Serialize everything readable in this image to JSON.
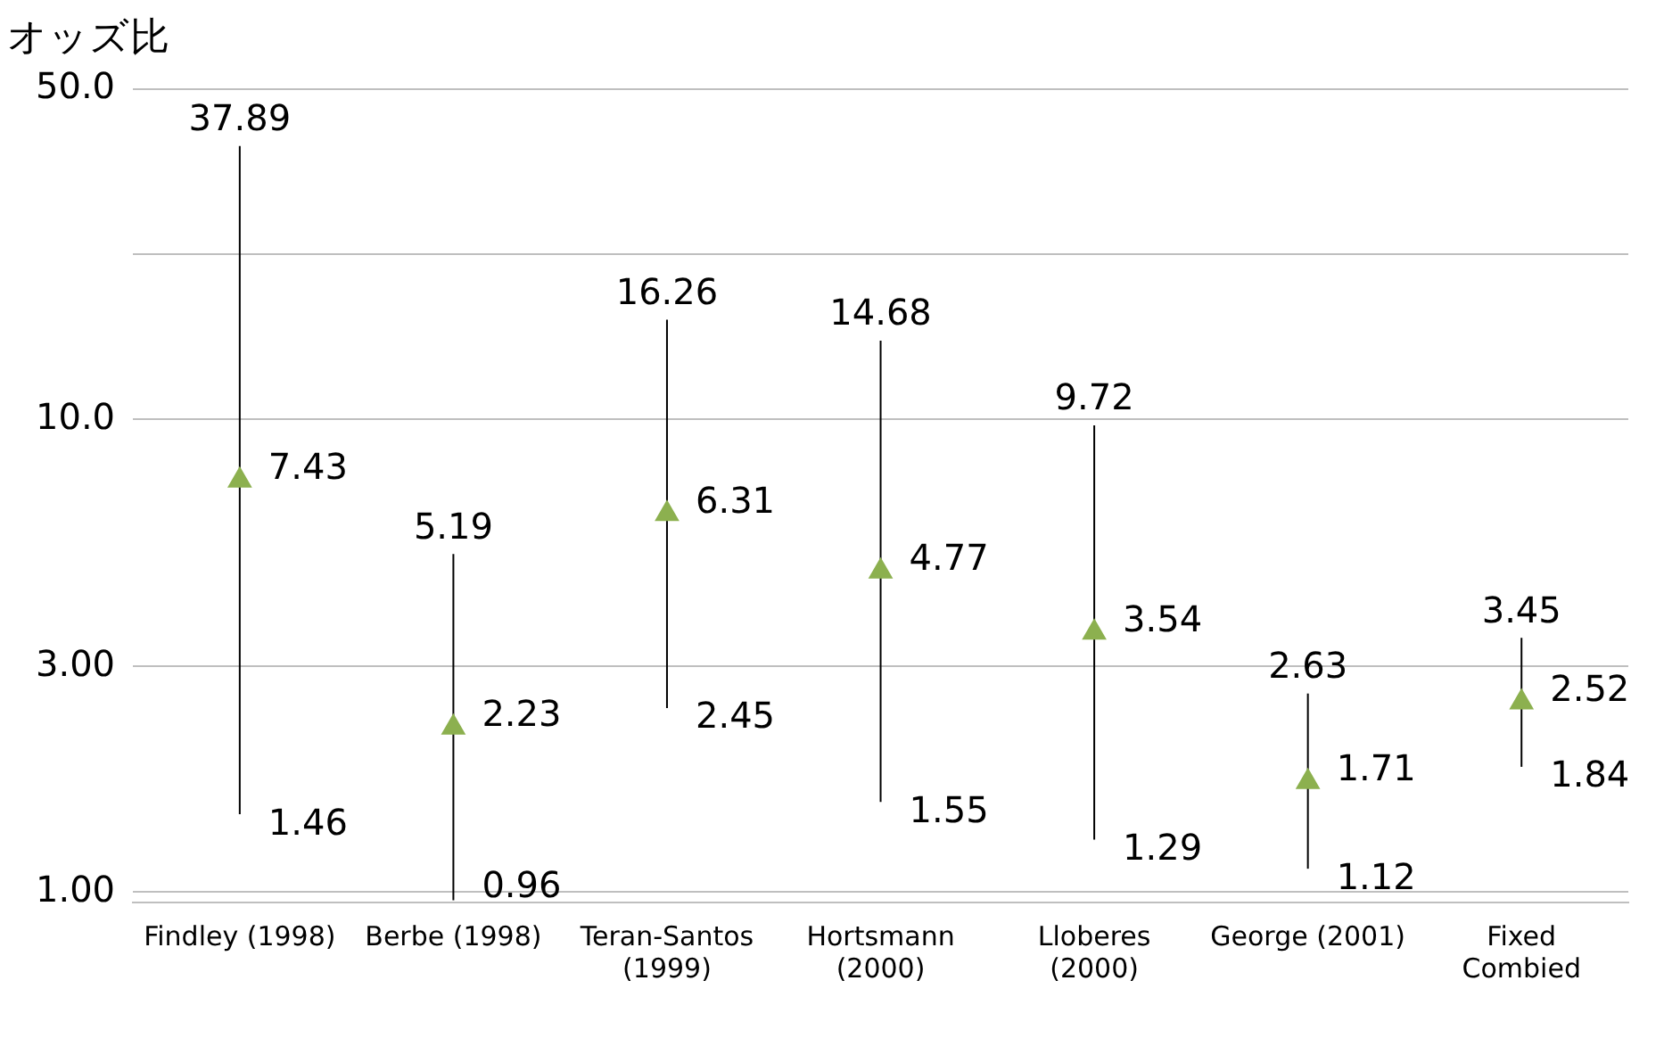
{
  "chart_data": {
    "type": "scatter",
    "ylabel": "オッズ比",
    "categories": [
      "Findley (1998)",
      "Berbe (1998)",
      "Teran-Santos\n(1999)",
      "Hortsmann\n(2000)",
      "Lloberes\n(2000)",
      "George (2001)",
      "Fixed\nCombied"
    ],
    "values": [
      7.43,
      2.23,
      6.31,
      4.77,
      3.54,
      1.71,
      2.52
    ],
    "errors": [
      [
        1.46,
        37.89
      ],
      [
        0.96,
        5.19
      ],
      [
        2.45,
        16.26
      ],
      [
        1.55,
        14.68
      ],
      [
        1.29,
        9.72
      ],
      [
        1.12,
        2.63
      ],
      [
        1.84,
        3.45
      ]
    ],
    "color": "#8cb04f",
    "marker": "triangle",
    "data_labels": true,
    "log": "y",
    "ylim": [
      0.95,
      50
    ],
    "yticks": [
      {
        "value": 1,
        "label": "1.00"
      },
      {
        "value": 3,
        "label": "3.00"
      },
      {
        "value": 10,
        "label": "10.0"
      },
      {
        "value": 22.4,
        "label": null
      },
      {
        "value": 50,
        "label": "50.0"
      }
    ],
    "grid": "y",
    "legend": false,
    "annotations": [
      {
        "text": "37.89",
        "x": "Findley (1998)",
        "y": 37.89
      },
      {
        "text": "1.46",
        "x": "Findley (1998)",
        "y": 1.46
      },
      {
        "text": "5.19",
        "x": "Berbe (1998)",
        "y": 5.19
      },
      {
        "text": "0.96",
        "x": "Berbe (1998)",
        "y": 0.96
      },
      {
        "text": "16.26",
        "x": "Teran-Santos\n(1999)",
        "y": 16.26
      },
      {
        "text": "2.45",
        "x": "Teran-Santos\n(1999)",
        "y": 2.45
      },
      {
        "text": "14.68",
        "x": "Hortsmann\n(2000)",
        "y": 14.68
      },
      {
        "text": "1.55",
        "x": "Hortsmann\n(2000)",
        "y": 1.55
      },
      {
        "text": "9.72",
        "x": "Lloberes\n(2000)",
        "y": 9.72
      },
      {
        "text": "1.29",
        "x": "Lloberes\n(2000)",
        "y": 1.29
      },
      {
        "text": "2.63",
        "x": "George (2001)",
        "y": 2.63
      },
      {
        "text": "1.12",
        "x": "George (2001)",
        "y": 1.12
      },
      {
        "text": "3.45",
        "x": "Fixed\nCombied",
        "y": 3.45
      },
      {
        "text": "1.84",
        "x": "Fixed\nCombied",
        "y": 1.84
      }
    ]
  }
}
